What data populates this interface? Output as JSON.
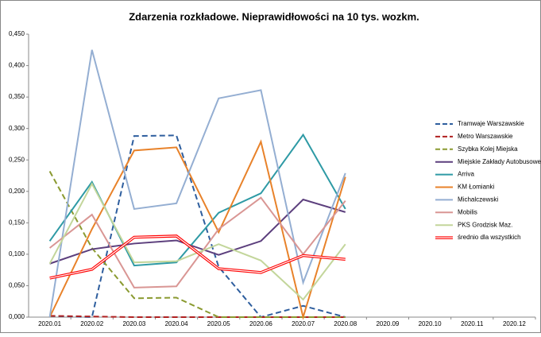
{
  "chart_data": {
    "type": "line",
    "title": "Zdarzenia rozkładowe. Nieprawidłowości na 10 tys. wozkm.",
    "categories": [
      "2020.01",
      "2020.02",
      "2020.03",
      "2020.04",
      "2020.05",
      "2020.06",
      "2020.07",
      "2020.08",
      "2020.09",
      "2020.10",
      "2020.11",
      "2020.12"
    ],
    "ylim": [
      0,
      0.45
    ],
    "yticks": [
      {
        "value": 0,
        "label": "0,000"
      },
      {
        "value": 0.05,
        "label": "0,050"
      },
      {
        "value": 0.1,
        "label": "0,100"
      },
      {
        "value": 0.15,
        "label": "0,150"
      },
      {
        "value": 0.2,
        "label": "0,200"
      },
      {
        "value": 0.25,
        "label": "0,250"
      },
      {
        "value": 0.3,
        "label": "0,300"
      },
      {
        "value": 0.35,
        "label": "0,350"
      },
      {
        "value": 0.4,
        "label": "0,400"
      },
      {
        "value": 0.45,
        "label": "0,450"
      }
    ],
    "grid": false,
    "legend": "right",
    "series": [
      {
        "name": "Tramwaje Warszawskie",
        "color": "#2e5e9e",
        "style": "dashed",
        "values": [
          0.002,
          0.0,
          0.288,
          0.289,
          0.08,
          0.0,
          0.018,
          0.0,
          null,
          null,
          null,
          null
        ]
      },
      {
        "name": "Metro Warszawskie",
        "color": "#b02020",
        "style": "dashed",
        "values": [
          0.002,
          0.001,
          0.0,
          0.0,
          0.0,
          0.0,
          0.0,
          0.0,
          null,
          null,
          null,
          null
        ]
      },
      {
        "name": "Szybka Kolej Miejska",
        "color": "#8a9a30",
        "style": "dashed",
        "values": [
          0.232,
          0.11,
          0.03,
          0.031,
          0.0,
          0.0,
          0.0,
          0.0,
          null,
          null,
          null,
          null
        ]
      },
      {
        "name": "Miejskie Zakłady Autobusowe",
        "color": "#5c3f7d",
        "style": "solid",
        "values": [
          0.085,
          0.108,
          0.117,
          0.122,
          0.099,
          0.121,
          0.187,
          0.167,
          null,
          null,
          null,
          null
        ]
      },
      {
        "name": "Arriva",
        "color": "#2e9aa5",
        "style": "solid",
        "values": [
          0.121,
          0.215,
          0.082,
          0.087,
          0.166,
          0.197,
          0.29,
          0.172,
          null,
          null,
          null,
          null
        ]
      },
      {
        "name": "KM Łomianki",
        "color": "#e8822a",
        "style": "solid",
        "values": [
          0.0,
          0.14,
          0.265,
          0.27,
          0.135,
          0.279,
          0.0,
          0.223,
          null,
          null,
          null,
          null
        ]
      },
      {
        "name": "Michalczewski",
        "color": "#94aed2",
        "style": "solid",
        "values": [
          0.0,
          0.425,
          0.172,
          0.181,
          0.348,
          0.361,
          0.055,
          0.229,
          null,
          null,
          null,
          null
        ]
      },
      {
        "name": "Mobilis",
        "color": "#d99694",
        "style": "solid",
        "values": [
          0.11,
          0.163,
          0.047,
          0.049,
          0.14,
          0.19,
          0.1,
          0.185,
          null,
          null,
          null,
          null
        ]
      },
      {
        "name": "PKS Grodzisk Maz.",
        "color": "#c3d69b",
        "style": "solid",
        "values": [
          0.085,
          0.212,
          0.087,
          0.089,
          0.116,
          0.09,
          0.028,
          0.116,
          null,
          null,
          null,
          null
        ]
      },
      {
        "name": "średnio dla wszystkich",
        "color": "#ff0000",
        "style": "double",
        "values": [
          0.062,
          0.076,
          0.127,
          0.129,
          0.077,
          0.071,
          0.098,
          0.092,
          null,
          null,
          null,
          null
        ]
      }
    ]
  }
}
